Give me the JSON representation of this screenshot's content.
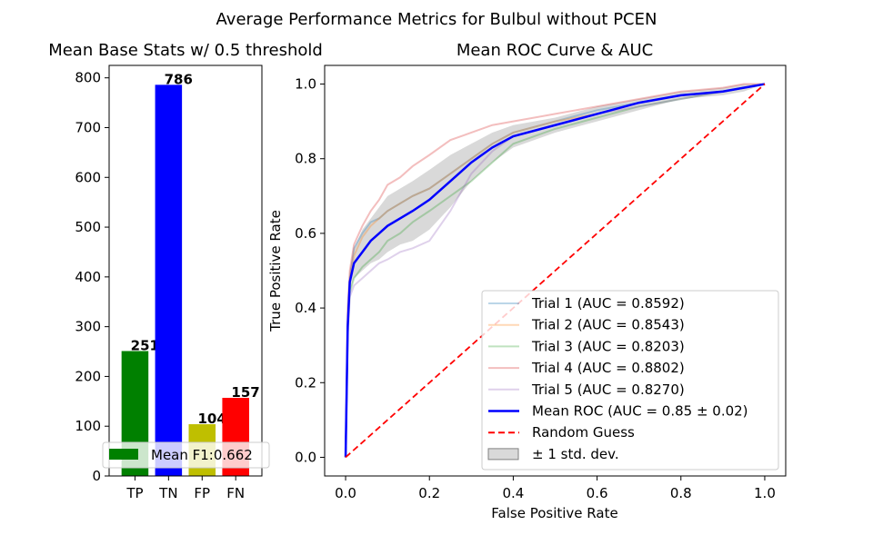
{
  "figure": {
    "suptitle": "Average Performance Metrics for Bulbul without PCEN"
  },
  "chart_data": [
    {
      "type": "bar",
      "title": "Mean Base Stats w/ 0.5 threshold",
      "xlabel": "",
      "ylabel": "",
      "categories": [
        "TP",
        "TN",
        "FP",
        "FN"
      ],
      "values": [
        251,
        786,
        104,
        157
      ],
      "value_labels": [
        "251",
        "786",
        "104",
        "157"
      ],
      "colors": [
        "#008000",
        "#0000ff",
        "#bfbf00",
        "#ff0000"
      ],
      "ylim": [
        0,
        825
      ],
      "yticks": [
        0,
        100,
        200,
        300,
        400,
        500,
        600,
        700,
        800
      ],
      "ytick_labels": [
        "0",
        "100",
        "200",
        "300",
        "400",
        "500",
        "600",
        "700",
        "800"
      ],
      "legend": {
        "placement": "lower-left",
        "entries": [
          {
            "label": "Mean F1:0.662",
            "color": "#008000"
          }
        ]
      }
    },
    {
      "type": "line",
      "title": "Mean ROC Curve & AUC",
      "xlabel": "False Positive Rate",
      "ylabel": "True Positive Rate",
      "xlim": [
        -0.05,
        1.05
      ],
      "ylim": [
        -0.05,
        1.05
      ],
      "xticks": [
        0.0,
        0.2,
        0.4,
        0.6,
        0.8,
        1.0
      ],
      "xtick_labels": [
        "0.0",
        "0.2",
        "0.4",
        "0.6",
        "0.8",
        "1.0"
      ],
      "yticks": [
        0.0,
        0.2,
        0.4,
        0.6,
        0.8,
        1.0
      ],
      "ytick_labels": [
        "0.0",
        "0.2",
        "0.4",
        "0.6",
        "0.8",
        "1.0"
      ],
      "series": [
        {
          "name": "Trial 1 (AUC = 0.8592)",
          "color": "#1f77b4",
          "alpha": 0.3,
          "x": [
            0,
            0.005,
            0.01,
            0.02,
            0.04,
            0.06,
            0.08,
            0.1,
            0.13,
            0.16,
            0.2,
            0.25,
            0.3,
            0.35,
            0.4,
            0.5,
            0.6,
            0.7,
            0.8,
            0.9,
            0.95,
            1.0
          ],
          "y": [
            0,
            0.35,
            0.48,
            0.56,
            0.6,
            0.63,
            0.64,
            0.66,
            0.68,
            0.7,
            0.72,
            0.76,
            0.8,
            0.84,
            0.87,
            0.9,
            0.93,
            0.95,
            0.97,
            0.98,
            0.99,
            1.0
          ]
        },
        {
          "name": "Trial 2 (AUC = 0.8543)",
          "color": "#ff7f0e",
          "alpha": 0.3,
          "x": [
            0,
            0.005,
            0.01,
            0.02,
            0.04,
            0.06,
            0.08,
            0.1,
            0.13,
            0.16,
            0.2,
            0.25,
            0.3,
            0.35,
            0.4,
            0.5,
            0.6,
            0.7,
            0.8,
            0.9,
            0.95,
            1.0
          ],
          "y": [
            0,
            0.36,
            0.47,
            0.54,
            0.59,
            0.62,
            0.64,
            0.66,
            0.68,
            0.7,
            0.72,
            0.76,
            0.8,
            0.84,
            0.87,
            0.9,
            0.92,
            0.95,
            0.97,
            0.98,
            0.99,
            1.0
          ]
        },
        {
          "name": "Trial 3 (AUC = 0.8203)",
          "color": "#2ca02c",
          "alpha": 0.3,
          "x": [
            0,
            0.005,
            0.01,
            0.02,
            0.04,
            0.06,
            0.08,
            0.1,
            0.13,
            0.16,
            0.2,
            0.25,
            0.3,
            0.35,
            0.4,
            0.5,
            0.6,
            0.7,
            0.8,
            0.9,
            0.95,
            1.0
          ],
          "y": [
            0,
            0.33,
            0.44,
            0.48,
            0.51,
            0.53,
            0.55,
            0.58,
            0.6,
            0.63,
            0.66,
            0.7,
            0.74,
            0.79,
            0.84,
            0.88,
            0.91,
            0.94,
            0.96,
            0.98,
            0.99,
            1.0
          ]
        },
        {
          "name": "Trial 4 (AUC = 0.8802)",
          "color": "#d62728",
          "alpha": 0.3,
          "x": [
            0,
            0.005,
            0.01,
            0.02,
            0.04,
            0.06,
            0.08,
            0.1,
            0.13,
            0.16,
            0.2,
            0.25,
            0.3,
            0.35,
            0.4,
            0.5,
            0.6,
            0.7,
            0.8,
            0.9,
            0.95,
            1.0
          ],
          "y": [
            0,
            0.4,
            0.5,
            0.57,
            0.62,
            0.66,
            0.69,
            0.73,
            0.75,
            0.78,
            0.81,
            0.85,
            0.87,
            0.89,
            0.9,
            0.92,
            0.94,
            0.96,
            0.98,
            0.99,
            1.0,
            1.0
          ]
        },
        {
          "name": "Trial 5 (AUC = 0.8270)",
          "color": "#9467bd",
          "alpha": 0.3,
          "x": [
            0,
            0.005,
            0.01,
            0.02,
            0.04,
            0.06,
            0.08,
            0.1,
            0.13,
            0.16,
            0.2,
            0.25,
            0.3,
            0.35,
            0.4,
            0.5,
            0.6,
            0.7,
            0.8,
            0.9,
            0.95,
            1.0
          ],
          "y": [
            0,
            0.32,
            0.43,
            0.46,
            0.48,
            0.5,
            0.52,
            0.53,
            0.55,
            0.56,
            0.58,
            0.66,
            0.76,
            0.82,
            0.86,
            0.89,
            0.92,
            0.94,
            0.96,
            0.98,
            0.99,
            1.0
          ]
        },
        {
          "name": "Mean ROC (AUC = 0.85 ± 0.02)",
          "color": "#0000ff",
          "alpha": 1,
          "width": 2.5,
          "x": [
            0,
            0.005,
            0.01,
            0.02,
            0.04,
            0.06,
            0.08,
            0.1,
            0.13,
            0.16,
            0.2,
            0.25,
            0.3,
            0.35,
            0.4,
            0.5,
            0.6,
            0.7,
            0.8,
            0.9,
            0.95,
            1.0
          ],
          "y": [
            0,
            0.35,
            0.47,
            0.52,
            0.55,
            0.58,
            0.6,
            0.62,
            0.64,
            0.66,
            0.69,
            0.74,
            0.79,
            0.83,
            0.86,
            0.89,
            0.92,
            0.95,
            0.97,
            0.98,
            0.99,
            1.0
          ]
        },
        {
          "name": "Random Guess",
          "color": "#ff0000",
          "alpha": 1,
          "dashed": true,
          "width": 1.8,
          "x": [
            0,
            1
          ],
          "y": [
            0,
            1
          ]
        }
      ],
      "band": {
        "name": "± 1 std. dev.",
        "color": "#808080",
        "alpha": 0.3,
        "x": [
          0,
          0.005,
          0.01,
          0.02,
          0.04,
          0.06,
          0.08,
          0.1,
          0.13,
          0.16,
          0.2,
          0.25,
          0.3,
          0.35,
          0.4,
          0.5,
          0.6,
          0.7,
          0.8,
          0.9,
          0.95,
          1.0
        ],
        "upper": [
          0,
          0.38,
          0.5,
          0.56,
          0.61,
          0.64,
          0.67,
          0.7,
          0.72,
          0.74,
          0.77,
          0.81,
          0.84,
          0.87,
          0.89,
          0.91,
          0.94,
          0.96,
          0.98,
          0.99,
          1.0,
          1.0
        ],
        "lower": [
          0,
          0.32,
          0.44,
          0.48,
          0.5,
          0.52,
          0.53,
          0.55,
          0.57,
          0.58,
          0.61,
          0.67,
          0.74,
          0.79,
          0.83,
          0.87,
          0.9,
          0.93,
          0.96,
          0.97,
          0.98,
          1.0
        ]
      },
      "legend": {
        "placement": "lower-right",
        "entries": [
          {
            "label": "Trial 1 (AUC = 0.8592)",
            "kind": "line",
            "color": "#1f77b4",
            "alpha": 0.3
          },
          {
            "label": "Trial 2 (AUC = 0.8543)",
            "kind": "line",
            "color": "#ff7f0e",
            "alpha": 0.3
          },
          {
            "label": "Trial 3 (AUC = 0.8203)",
            "kind": "line",
            "color": "#2ca02c",
            "alpha": 0.3
          },
          {
            "label": "Trial 4 (AUC = 0.8802)",
            "kind": "line",
            "color": "#d62728",
            "alpha": 0.3
          },
          {
            "label": "Trial 5 (AUC = 0.8270)",
            "kind": "line",
            "color": "#9467bd",
            "alpha": 0.3
          },
          {
            "label": "Mean ROC (AUC = 0.85 ± 0.02)",
            "kind": "line",
            "color": "#0000ff",
            "alpha": 1
          },
          {
            "label": "Random Guess",
            "kind": "dashed",
            "color": "#ff0000",
            "alpha": 1
          },
          {
            "label": "± 1 std. dev.",
            "kind": "patch",
            "color": "#808080",
            "alpha": 0.3
          }
        ]
      }
    }
  ]
}
